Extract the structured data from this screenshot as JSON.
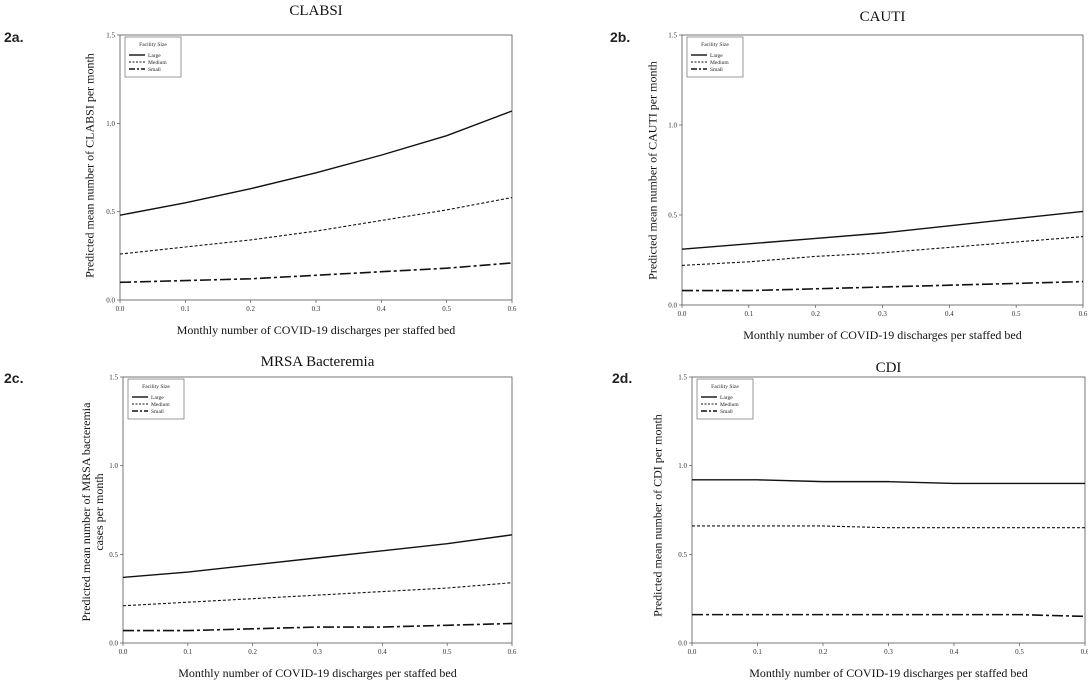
{
  "legend": {
    "title": "Facility Size",
    "entries": [
      "Large",
      "Medium",
      "Small"
    ]
  },
  "chart_data": [
    {
      "type": "line",
      "panel_label": "2a.",
      "title": "CLABSI",
      "xlabel": "Monthly number of COVID-19 discharges per staffed bed",
      "ylabel": "Predicted mean number of CLABSI per month",
      "x": [
        0.0,
        0.1,
        0.2,
        0.3,
        0.4,
        0.5,
        0.6
      ],
      "xticks": [
        "0.0",
        "0.1",
        "0.2",
        "0.3",
        "0.4",
        "0.5",
        "0.6"
      ],
      "yticks": [
        "0.0",
        "0.5",
        "1.0",
        "1.5"
      ],
      "xlim": [
        0,
        0.6
      ],
      "ylim": [
        0,
        1.5
      ],
      "legend_position": "top-left",
      "series": [
        {
          "name": "Large",
          "values": [
            0.48,
            0.55,
            0.63,
            0.72,
            0.82,
            0.93,
            1.07
          ]
        },
        {
          "name": "Medium",
          "values": [
            0.26,
            0.3,
            0.34,
            0.39,
            0.45,
            0.51,
            0.58
          ]
        },
        {
          "name": "Small",
          "values": [
            0.1,
            0.11,
            0.12,
            0.14,
            0.16,
            0.18,
            0.21
          ]
        }
      ]
    },
    {
      "type": "line",
      "panel_label": "2b.",
      "title": "CAUTI",
      "xlabel": "Monthly number of COVID-19 discharges per staffed bed",
      "ylabel": "Predicted mean number of CAUTI per month",
      "x": [
        0.0,
        0.1,
        0.2,
        0.3,
        0.4,
        0.5,
        0.6
      ],
      "xticks": [
        "0.0",
        "0.1",
        "0.2",
        "0.3",
        "0.4",
        "0.5",
        "0.6"
      ],
      "yticks": [
        "0.0",
        "0.5",
        "1.0",
        "1.5"
      ],
      "xlim": [
        0,
        0.6
      ],
      "ylim": [
        0,
        1.5
      ],
      "legend_position": "top-left",
      "series": [
        {
          "name": "Large",
          "values": [
            0.31,
            0.34,
            0.37,
            0.4,
            0.44,
            0.48,
            0.52
          ]
        },
        {
          "name": "Medium",
          "values": [
            0.22,
            0.24,
            0.27,
            0.29,
            0.32,
            0.35,
            0.38
          ]
        },
        {
          "name": "Small",
          "values": [
            0.08,
            0.08,
            0.09,
            0.1,
            0.11,
            0.12,
            0.13
          ]
        }
      ]
    },
    {
      "type": "line",
      "panel_label": "2c.",
      "title": "MRSA Bacteremia",
      "xlabel": "Monthly number of COVID-19 discharges per staffed bed",
      "ylabel": "Predicted mean number of MRSA bacteremia\ncases per month",
      "x": [
        0.0,
        0.1,
        0.2,
        0.3,
        0.4,
        0.5,
        0.6
      ],
      "xticks": [
        "0.0",
        "0.1",
        "0.2",
        "0.3",
        "0.4",
        "0.5",
        "0.6"
      ],
      "yticks": [
        "0.0",
        "0.5",
        "1.0",
        "1.5"
      ],
      "xlim": [
        0,
        0.6
      ],
      "ylim": [
        0,
        1.5
      ],
      "legend_position": "top-left",
      "series": [
        {
          "name": "Large",
          "values": [
            0.37,
            0.4,
            0.44,
            0.48,
            0.52,
            0.56,
            0.61
          ]
        },
        {
          "name": "Medium",
          "values": [
            0.21,
            0.23,
            0.25,
            0.27,
            0.29,
            0.31,
            0.34
          ]
        },
        {
          "name": "Small",
          "values": [
            0.07,
            0.07,
            0.08,
            0.09,
            0.09,
            0.1,
            0.11
          ]
        }
      ]
    },
    {
      "type": "line",
      "panel_label": "2d.",
      "title": "CDI",
      "xlabel": "Monthly number of COVID-19 discharges per staffed bed",
      "ylabel": "Predicted mean number of CDI per month",
      "x": [
        0.0,
        0.1,
        0.2,
        0.3,
        0.4,
        0.5,
        0.6
      ],
      "xticks": [
        "0.0",
        "0.1",
        "0.2",
        "0.3",
        "0.4",
        "0.5",
        "0.6"
      ],
      "yticks": [
        "0.0",
        "0.5",
        "1.0",
        "1.5"
      ],
      "xlim": [
        0,
        0.6
      ],
      "ylim": [
        0,
        1.5
      ],
      "legend_position": "top-left",
      "series": [
        {
          "name": "Large",
          "values": [
            0.92,
            0.92,
            0.91,
            0.91,
            0.9,
            0.9,
            0.9
          ]
        },
        {
          "name": "Medium",
          "values": [
            0.66,
            0.66,
            0.66,
            0.65,
            0.65,
            0.65,
            0.65
          ]
        },
        {
          "name": "Small",
          "values": [
            0.16,
            0.16,
            0.16,
            0.16,
            0.16,
            0.16,
            0.15
          ]
        }
      ]
    }
  ]
}
